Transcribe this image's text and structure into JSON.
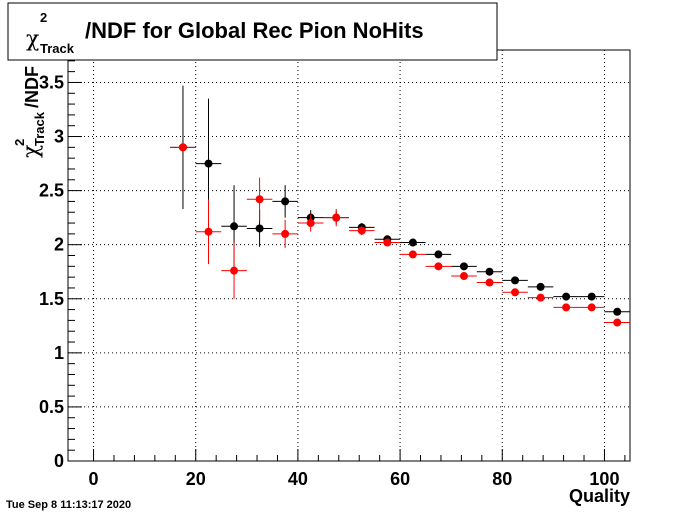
{
  "chart_data": {
    "type": "scatter",
    "title": "χ_Track^2/NDF for Global Rec Pion NoHits",
    "title_parts": {
      "chi": "χ",
      "sup": "2",
      "sub": "Track",
      "rest": "/NDF for Global Rec Pion NoHits"
    },
    "xlabel": "Quality",
    "ylabel_parts": {
      "chi": "χ",
      "sup": "2",
      "sub": "Track",
      "rest": "/NDF"
    },
    "xlim": [
      -5,
      105
    ],
    "ylim": [
      0,
      3.8
    ],
    "grid": true,
    "x_ticks": [
      0,
      20,
      40,
      60,
      80,
      100
    ],
    "y_ticks": [
      0,
      0.5,
      1,
      1.5,
      2,
      2.5,
      3,
      3.5
    ],
    "x_tick_labels": [
      "0",
      "20",
      "40",
      "60",
      "80",
      "100"
    ],
    "y_tick_labels": [
      "0",
      "0.5",
      "1",
      "1.5",
      "2",
      "2.5",
      "3",
      "3.5"
    ],
    "x_bin_halfwidth": 2.5,
    "series": [
      {
        "color": "#000000",
        "points": [
          {
            "x": 17.5,
            "y": 2.9,
            "err": 0.57
          },
          {
            "x": 22.5,
            "y": 2.75,
            "err": 0.6
          },
          {
            "x": 27.5,
            "y": 2.17,
            "err": 0.38
          },
          {
            "x": 32.5,
            "y": 2.15,
            "err": 0.17
          },
          {
            "x": 37.5,
            "y": 2.4,
            "err": 0.15
          },
          {
            "x": 42.5,
            "y": 2.25,
            "err": 0.07
          },
          {
            "x": 47.5,
            "y": 2.25,
            "err": 0.06
          },
          {
            "x": 52.5,
            "y": 2.16,
            "err": 0.04
          },
          {
            "x": 57.5,
            "y": 2.05,
            "err": 0.03
          },
          {
            "x": 62.5,
            "y": 2.02,
            "err": 0.02
          },
          {
            "x": 67.5,
            "y": 1.91,
            "err": 0.02
          },
          {
            "x": 72.5,
            "y": 1.8,
            "err": 0.02
          },
          {
            "x": 77.5,
            "y": 1.75,
            "err": 0.02
          },
          {
            "x": 82.5,
            "y": 1.67,
            "err": 0.02
          },
          {
            "x": 87.5,
            "y": 1.61,
            "err": 0.02
          },
          {
            "x": 92.5,
            "y": 1.52,
            "err": 0.02
          },
          {
            "x": 97.5,
            "y": 1.52,
            "err": 0.02
          },
          {
            "x": 102.5,
            "y": 1.38,
            "err": 0.02
          }
        ]
      },
      {
        "color": "#ff0000",
        "points": [
          {
            "x": 17.5,
            "y": 2.9,
            "err": 0.0
          },
          {
            "x": 22.5,
            "y": 2.12,
            "err": 0.3
          },
          {
            "x": 27.5,
            "y": 1.76,
            "err": 0.26
          },
          {
            "x": 32.5,
            "y": 2.42,
            "err": 0.2
          },
          {
            "x": 37.5,
            "y": 2.1,
            "err": 0.13
          },
          {
            "x": 42.5,
            "y": 2.2,
            "err": 0.08
          },
          {
            "x": 47.5,
            "y": 2.25,
            "err": 0.08
          },
          {
            "x": 52.5,
            "y": 2.13,
            "err": 0.04
          },
          {
            "x": 57.5,
            "y": 2.02,
            "err": 0.03
          },
          {
            "x": 62.5,
            "y": 1.91,
            "err": 0.02
          },
          {
            "x": 67.5,
            "y": 1.8,
            "err": 0.02
          },
          {
            "x": 72.5,
            "y": 1.71,
            "err": 0.02
          },
          {
            "x": 77.5,
            "y": 1.65,
            "err": 0.02
          },
          {
            "x": 82.5,
            "y": 1.56,
            "err": 0.02
          },
          {
            "x": 87.5,
            "y": 1.51,
            "err": 0.02
          },
          {
            "x": 92.5,
            "y": 1.42,
            "err": 0.02
          },
          {
            "x": 97.5,
            "y": 1.42,
            "err": 0.02
          },
          {
            "x": 102.5,
            "y": 1.28,
            "err": 0.02
          }
        ]
      }
    ]
  },
  "timestamp": "Tue Sep  8 11:13:17 2020"
}
